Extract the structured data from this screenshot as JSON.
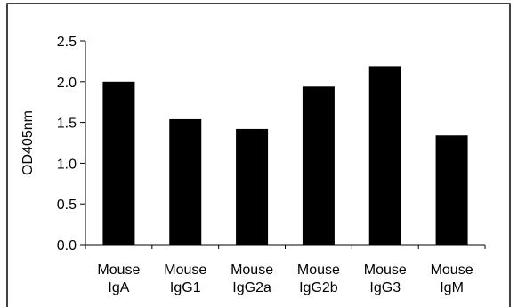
{
  "chart_data": {
    "type": "bar",
    "categories": [
      [
        "Mouse",
        "IgA"
      ],
      [
        "Mouse",
        "IgG1"
      ],
      [
        "Mouse",
        "IgG2a"
      ],
      [
        "Mouse",
        "IgG2b"
      ],
      [
        "Mouse",
        "IgG3"
      ],
      [
        "Mouse",
        "IgM"
      ]
    ],
    "values": [
      2.0,
      1.54,
      1.42,
      1.94,
      2.19,
      1.34
    ],
    "title": "",
    "xlabel": "",
    "ylabel": "OD405nm",
    "ylim": [
      0,
      2.5
    ],
    "yticks": [
      "0.0",
      "0.5",
      "1.0",
      "1.5",
      "2.0",
      "2.5"
    ],
    "bar_color": "#000000",
    "grid": false,
    "legend": "none"
  }
}
